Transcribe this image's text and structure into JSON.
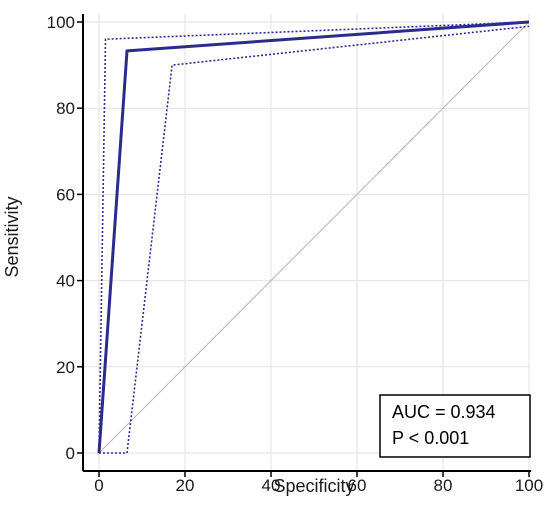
{
  "chart_data": {
    "type": "line",
    "title": "",
    "xlabel": "Specificity",
    "ylabel": "Sensitivity",
    "xlim": [
      0,
      100
    ],
    "ylim": [
      0,
      100
    ],
    "x_ticks": [
      0,
      20,
      40,
      60,
      80,
      100
    ],
    "y_ticks": [
      0,
      20,
      40,
      60,
      80,
      100
    ],
    "grid": true,
    "series": [
      {
        "style": "solid",
        "color": "#2b2b8c",
        "points": [
          [
            0,
            0
          ],
          [
            6.5,
            93.3
          ],
          [
            100,
            100
          ]
        ]
      },
      {
        "style": "dotted",
        "color": "#2b2b8c",
        "points": [
          [
            0,
            0
          ],
          [
            1.5,
            96
          ],
          [
            100,
            100
          ]
        ]
      },
      {
        "style": "dotted",
        "color": "#2b2b8c",
        "points": [
          [
            0,
            0
          ],
          [
            6.5,
            0
          ],
          [
            17,
            90
          ],
          [
            100,
            99
          ]
        ]
      },
      {
        "style": "diagonal",
        "color": "#d4a5b5",
        "points": [
          [
            0,
            0
          ],
          [
            100,
            100
          ]
        ]
      }
    ],
    "annotations": {
      "auc": "AUC = 0.934",
      "p_value": "P < 0.001"
    }
  }
}
